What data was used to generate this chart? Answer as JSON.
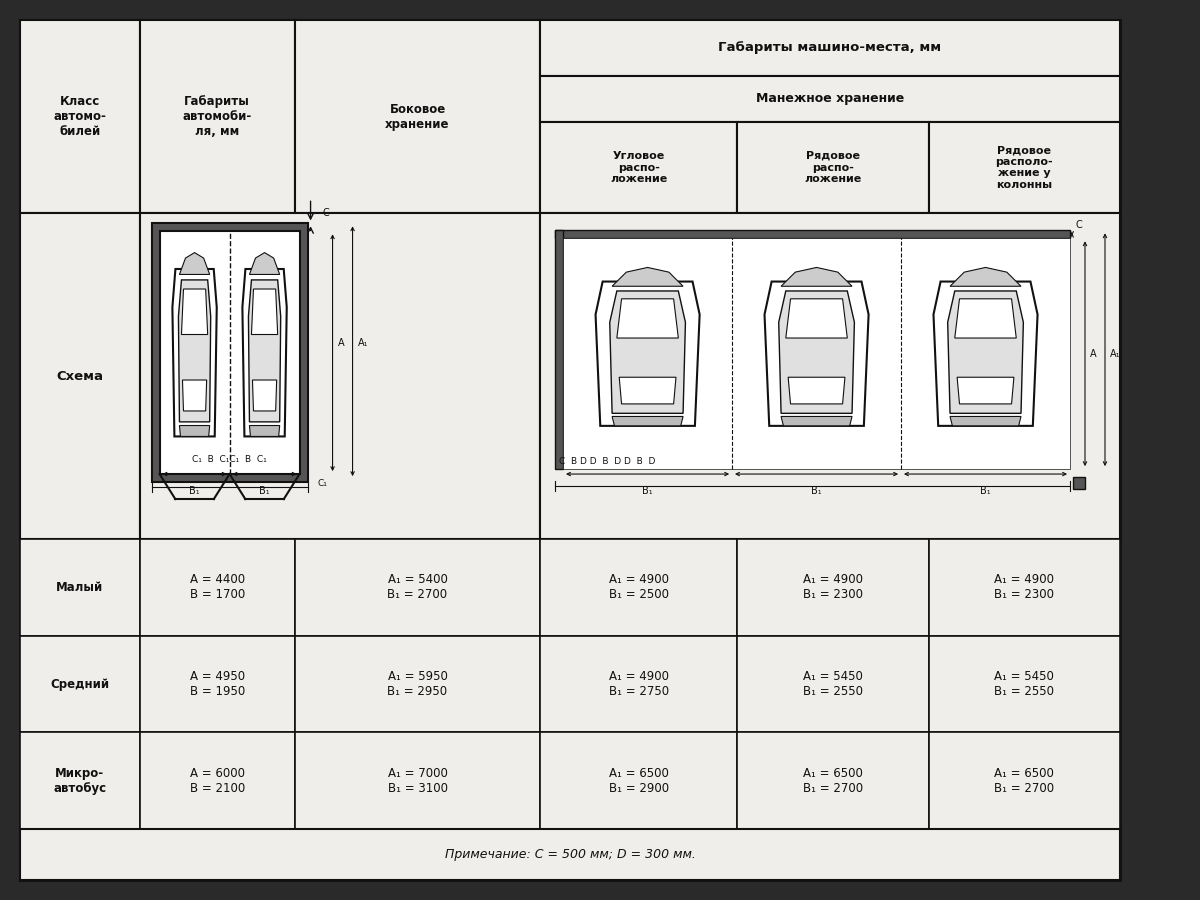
{
  "title_main": "Габариты машино-места, мм",
  "title_sub": "Манежное хранение",
  "col_headers_1_2": [
    "Класс\nавтомо-\nбилей",
    "Габариты\nавтомоби-\nля, мм"
  ],
  "col_header_3": "Боковое\nхранение",
  "col_headers_4_6": [
    "Угловое\nраспо-\nложение",
    "Рядовое\nраспо-\nложение",
    "Рядовое\nрасполо-\nжение у\nколонны"
  ],
  "schema_label": "Схема",
  "rows": [
    {
      "class": "Малый",
      "dims": "A = 4400\nB = 1700",
      "bokovoe": "A₁ = 5400\nB₁ = 2700",
      "uglovoe": "A₁ = 4900\nB₁ = 2500",
      "ryadovoe": "A₁ = 4900\nB₁ = 2300"
    },
    {
      "class": "Средний",
      "dims": "A = 4950\nB = 1950",
      "bokovoe": "A₁ = 5950\nB₁ = 2950",
      "uglovoe": "A₁ = 4900\nB₁ = 2750",
      "ryadovoe": "A₁ = 5450\nB₁ = 2550"
    },
    {
      "class": "Микро-\nавтобус",
      "dims": "A = 6000\nB = 2100",
      "bokovoe": "A₁ = 7000\nB₁ = 3100",
      "uglovoe": "A₁ = 6500\nB₁ = 2900",
      "ryadovoe": "A₁ = 6500\nB₁ = 2700"
    }
  ],
  "note": "Примечание: C = 500 мм; D = 300 мм.",
  "outer_bg": "#2a2a2a",
  "table_bg": "#f0eeea",
  "border_color": "#111111",
  "text_color": "#111111",
  "header_text_color": "#111111"
}
